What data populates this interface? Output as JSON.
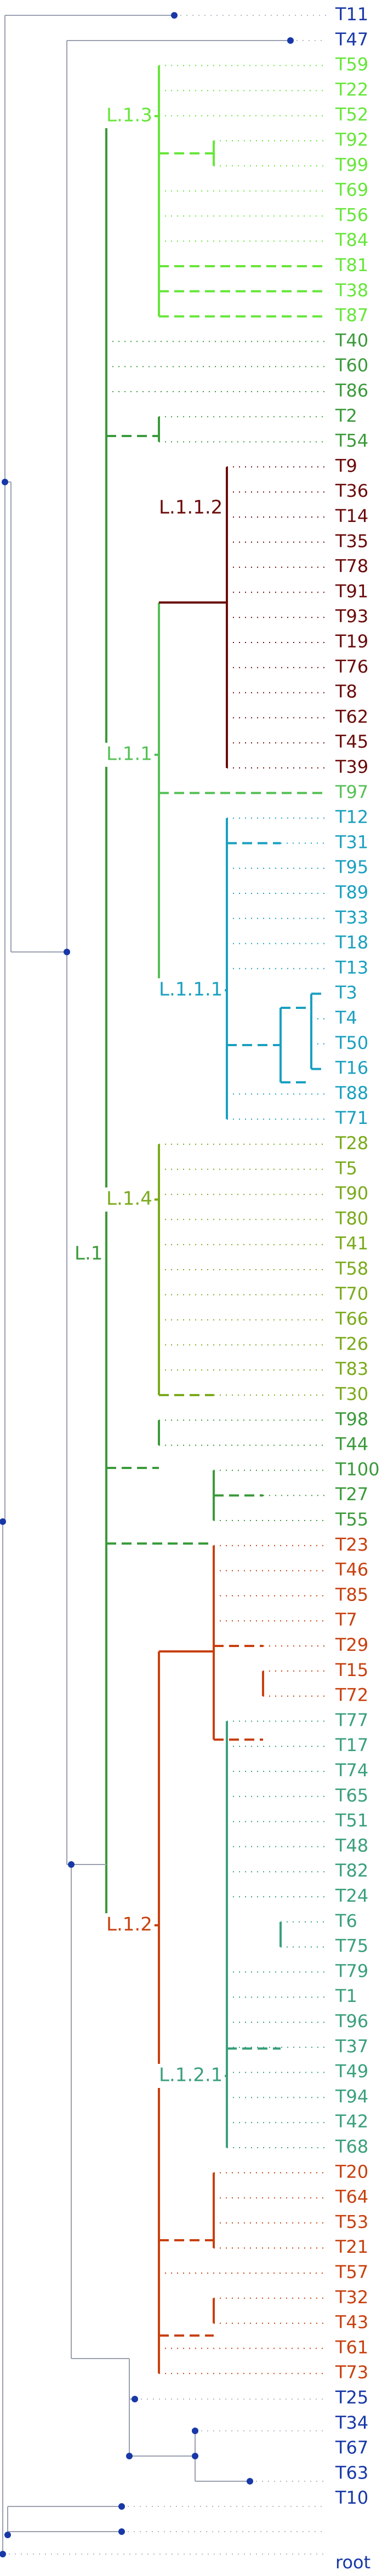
{
  "tree": {
    "type": "phylogenetic-tree",
    "root_label": "root",
    "colors": {
      "base": "#1838a8",
      "L.1": "#3a9a3a",
      "L.1.3": "#66e63a",
      "L.1.1": "#55c055",
      "L.1.1.2": "#6a0a0a",
      "L.1.1.1": "#1aa0c0",
      "L.1.4": "#7aaa1a",
      "L.1.2": "#c8400e",
      "L.1.2.1": "#3aa07a"
    },
    "leaves": [
      {
        "label": "T11",
        "clade": "base"
      },
      {
        "label": "T47",
        "clade": "base"
      },
      {
        "label": "T59",
        "clade": "L.1.3"
      },
      {
        "label": "T22",
        "clade": "L.1.3"
      },
      {
        "label": "T52",
        "clade": "L.1.3"
      },
      {
        "label": "T92",
        "clade": "L.1.3"
      },
      {
        "label": "T99",
        "clade": "L.1.3"
      },
      {
        "label": "T69",
        "clade": "L.1.3"
      },
      {
        "label": "T56",
        "clade": "L.1.3"
      },
      {
        "label": "T84",
        "clade": "L.1.3"
      },
      {
        "label": "T81",
        "clade": "L.1.3"
      },
      {
        "label": "T38",
        "clade": "L.1.3"
      },
      {
        "label": "T87",
        "clade": "L.1.3"
      },
      {
        "label": "T40",
        "clade": "L.1"
      },
      {
        "label": "T60",
        "clade": "L.1"
      },
      {
        "label": "T86",
        "clade": "L.1"
      },
      {
        "label": "T2",
        "clade": "L.1"
      },
      {
        "label": "T54",
        "clade": "L.1"
      },
      {
        "label": "T9",
        "clade": "L.1.1.2"
      },
      {
        "label": "T36",
        "clade": "L.1.1.2"
      },
      {
        "label": "T14",
        "clade": "L.1.1.2"
      },
      {
        "label": "T35",
        "clade": "L.1.1.2"
      },
      {
        "label": "T78",
        "clade": "L.1.1.2"
      },
      {
        "label": "T91",
        "clade": "L.1.1.2"
      },
      {
        "label": "T93",
        "clade": "L.1.1.2"
      },
      {
        "label": "T19",
        "clade": "L.1.1.2"
      },
      {
        "label": "T76",
        "clade": "L.1.1.2"
      },
      {
        "label": "T8",
        "clade": "L.1.1.2"
      },
      {
        "label": "T62",
        "clade": "L.1.1.2"
      },
      {
        "label": "T45",
        "clade": "L.1.1.2"
      },
      {
        "label": "T39",
        "clade": "L.1.1.2"
      },
      {
        "label": "T97",
        "clade": "L.1.1"
      },
      {
        "label": "T12",
        "clade": "L.1.1.1"
      },
      {
        "label": "T31",
        "clade": "L.1.1.1"
      },
      {
        "label": "T95",
        "clade": "L.1.1.1"
      },
      {
        "label": "T89",
        "clade": "L.1.1.1"
      },
      {
        "label": "T33",
        "clade": "L.1.1.1"
      },
      {
        "label": "T18",
        "clade": "L.1.1.1"
      },
      {
        "label": "T13",
        "clade": "L.1.1.1"
      },
      {
        "label": "T3",
        "clade": "L.1.1.1"
      },
      {
        "label": "T4",
        "clade": "L.1.1.1"
      },
      {
        "label": "T50",
        "clade": "L.1.1.1"
      },
      {
        "label": "T16",
        "clade": "L.1.1.1"
      },
      {
        "label": "T88",
        "clade": "L.1.1.1"
      },
      {
        "label": "T71",
        "clade": "L.1.1.1"
      },
      {
        "label": "T28",
        "clade": "L.1.4"
      },
      {
        "label": "T5",
        "clade": "L.1.4"
      },
      {
        "label": "T90",
        "clade": "L.1.4"
      },
      {
        "label": "T80",
        "clade": "L.1.4"
      },
      {
        "label": "T41",
        "clade": "L.1.4"
      },
      {
        "label": "T58",
        "clade": "L.1.4"
      },
      {
        "label": "T70",
        "clade": "L.1.4"
      },
      {
        "label": "T66",
        "clade": "L.1.4"
      },
      {
        "label": "T26",
        "clade": "L.1.4"
      },
      {
        "label": "T83",
        "clade": "L.1.4"
      },
      {
        "label": "T30",
        "clade": "L.1.4"
      },
      {
        "label": "T98",
        "clade": "L.1"
      },
      {
        "label": "T44",
        "clade": "L.1"
      },
      {
        "label": "T100",
        "clade": "L.1"
      },
      {
        "label": "T27",
        "clade": "L.1"
      },
      {
        "label": "T55",
        "clade": "L.1"
      },
      {
        "label": "T23",
        "clade": "L.1.2"
      },
      {
        "label": "T46",
        "clade": "L.1.2"
      },
      {
        "label": "T85",
        "clade": "L.1.2"
      },
      {
        "label": "T7",
        "clade": "L.1.2"
      },
      {
        "label": "T29",
        "clade": "L.1.2"
      },
      {
        "label": "T15",
        "clade": "L.1.2"
      },
      {
        "label": "T72",
        "clade": "L.1.2"
      },
      {
        "label": "T77",
        "clade": "L.1.2.1"
      },
      {
        "label": "T17",
        "clade": "L.1.2.1"
      },
      {
        "label": "T74",
        "clade": "L.1.2.1"
      },
      {
        "label": "T65",
        "clade": "L.1.2.1"
      },
      {
        "label": "T51",
        "clade": "L.1.2.1"
      },
      {
        "label": "T48",
        "clade": "L.1.2.1"
      },
      {
        "label": "T82",
        "clade": "L.1.2.1"
      },
      {
        "label": "T24",
        "clade": "L.1.2.1"
      },
      {
        "label": "T6",
        "clade": "L.1.2.1"
      },
      {
        "label": "T75",
        "clade": "L.1.2.1"
      },
      {
        "label": "T79",
        "clade": "L.1.2.1"
      },
      {
        "label": "T1",
        "clade": "L.1.2.1"
      },
      {
        "label": "T96",
        "clade": "L.1.2.1"
      },
      {
        "label": "T37",
        "clade": "L.1.2.1"
      },
      {
        "label": "T49",
        "clade": "L.1.2.1"
      },
      {
        "label": "T94",
        "clade": "L.1.2.1"
      },
      {
        "label": "T42",
        "clade": "L.1.2.1"
      },
      {
        "label": "T68",
        "clade": "L.1.2.1"
      },
      {
        "label": "T20",
        "clade": "L.1.2"
      },
      {
        "label": "T64",
        "clade": "L.1.2"
      },
      {
        "label": "T53",
        "clade": "L.1.2"
      },
      {
        "label": "T21",
        "clade": "L.1.2"
      },
      {
        "label": "T57",
        "clade": "L.1.2"
      },
      {
        "label": "T32",
        "clade": "L.1.2"
      },
      {
        "label": "T43",
        "clade": "L.1.2"
      },
      {
        "label": "T61",
        "clade": "L.1.2"
      },
      {
        "label": "T73",
        "clade": "L.1.2"
      },
      {
        "label": "T25",
        "clade": "base"
      },
      {
        "label": "T34",
        "clade": "base"
      },
      {
        "label": "T67",
        "clade": "base"
      },
      {
        "label": "T63",
        "clade": "base"
      },
      {
        "label": "T10",
        "clade": "base"
      }
    ],
    "clades": [
      {
        "label": "L.1",
        "clade": "L.1"
      },
      {
        "label": "L.1.3",
        "clade": "L.1.3"
      },
      {
        "label": "L.1.1",
        "clade": "L.1.1"
      },
      {
        "label": "L.1.1.2",
        "clade": "L.1.1.2"
      },
      {
        "label": "L.1.1.1",
        "clade": "L.1.1.1"
      },
      {
        "label": "L.1.4",
        "clade": "L.1.4"
      },
      {
        "label": "L.1.2",
        "clade": "L.1.2"
      },
      {
        "label": "L.1.2.1",
        "clade": "L.1.2.1"
      }
    ]
  }
}
